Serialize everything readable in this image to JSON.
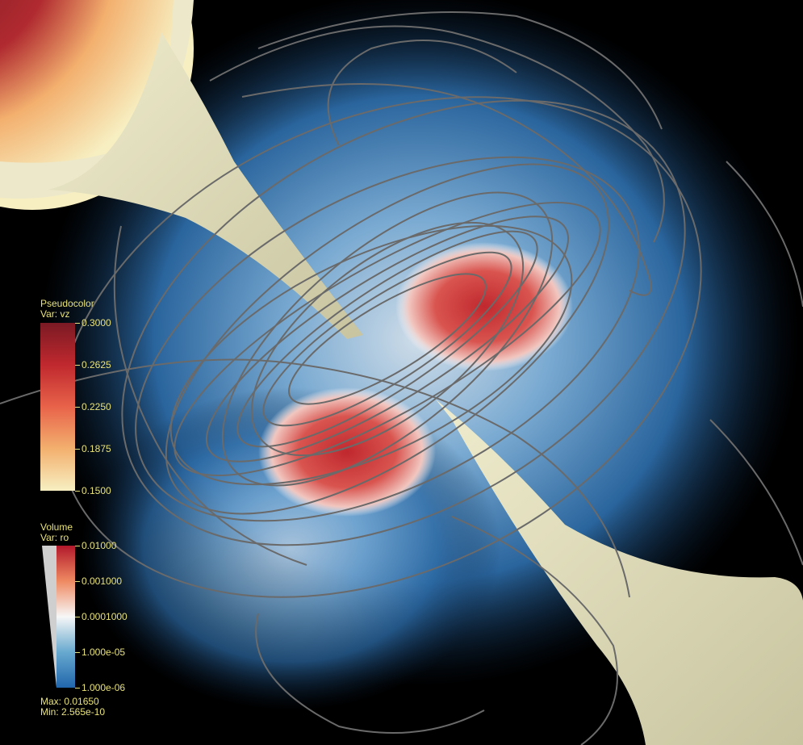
{
  "pseudocolor_legend": {
    "title": "Pseudocolor",
    "variable": "Var: vz",
    "ticks": [
      "0.3000",
      "0.2625",
      "0.2250",
      "0.1875",
      "0.1500"
    ],
    "colors": [
      "#7a1a24",
      "#c0282e",
      "#e8634a",
      "#f3b06e",
      "#f7efc2"
    ]
  },
  "volume_legend": {
    "title": "Volume",
    "variable": "Var: ro",
    "ticks": [
      "0.01000",
      "0.001000",
      "0.0001000",
      "1.000e-05",
      "1.000e-06"
    ],
    "colors": [
      "#b2182b",
      "#ef8a62",
      "#f7f7f7",
      "#67a9cf",
      "#2166ac"
    ],
    "max_label": "Max: 0.01650",
    "min_label": "Min: 2.565e-10"
  }
}
